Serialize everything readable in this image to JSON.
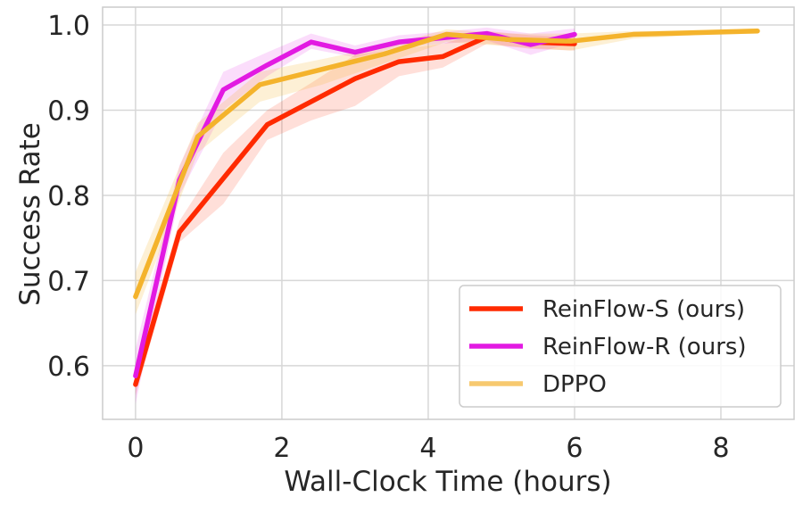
{
  "chart_data": {
    "type": "line",
    "title": "",
    "xlabel": "Wall-Clock Time (hours)",
    "ylabel": "Success Rate",
    "xlim": [
      -0.45,
      9.0
    ],
    "ylim": [
      0.537,
      1.021
    ],
    "xticks": [
      0,
      2,
      4,
      6,
      8
    ],
    "xtick_labels": [
      "0",
      "2",
      "4",
      "6",
      "8"
    ],
    "yticks": [
      0.6,
      0.7,
      0.8,
      0.9,
      1.0
    ],
    "ytick_labels": [
      "0.6",
      "0.7",
      "0.8",
      "0.9",
      "1.0"
    ],
    "grid": true,
    "legend_position": "bottom-right",
    "series": [
      {
        "name": "ReinFlow-S (ours)",
        "color": "#ff2a00",
        "alpha_band": 0.15,
        "x": [
          0,
          0.6,
          1.2,
          1.8,
          2.4,
          3.0,
          3.6,
          4.2,
          4.8,
          5.4,
          6.0
        ],
        "y": [
          0.578,
          0.757,
          0.82,
          0.883,
          0.91,
          0.937,
          0.957,
          0.963,
          0.986,
          0.98,
          0.978
        ],
        "lower": [
          0.565,
          0.745,
          0.79,
          0.865,
          0.888,
          0.905,
          0.94,
          0.95,
          0.978,
          0.972,
          0.97
        ],
        "upper": [
          0.592,
          0.77,
          0.85,
          0.9,
          0.932,
          0.965,
          0.972,
          0.978,
          0.993,
          0.988,
          0.986
        ]
      },
      {
        "name": "ReinFlow-R (ours)",
        "color": "#e21ae2",
        "alpha_band": 0.15,
        "x": [
          0,
          0.6,
          1.2,
          1.8,
          2.4,
          3.0,
          3.6,
          4.2,
          4.8,
          5.4,
          6.0
        ],
        "y": [
          0.588,
          0.818,
          0.924,
          0.953,
          0.98,
          0.968,
          0.98,
          0.985,
          0.99,
          0.977,
          0.989
        ],
        "lower": [
          0.555,
          0.8,
          0.9,
          0.94,
          0.972,
          0.962,
          0.974,
          0.978,
          0.982,
          0.965,
          0.98
        ],
        "upper": [
          0.62,
          0.835,
          0.945,
          0.968,
          0.99,
          0.976,
          0.988,
          0.992,
          0.997,
          0.99,
          0.996
        ]
      },
      {
        "name": "DPPO",
        "color": "#f4b32c",
        "legend_color": "#f7c96f",
        "alpha_band": 0.2,
        "x": [
          0,
          0.85,
          1.7,
          2.55,
          3.4,
          4.25,
          5.1,
          5.95,
          6.8,
          7.65,
          8.5
        ],
        "y": [
          0.681,
          0.869,
          0.93,
          0.948,
          0.966,
          0.989,
          0.983,
          0.981,
          0.989,
          0.991,
          0.993
        ],
        "lower": [
          0.66,
          0.85,
          0.91,
          0.93,
          0.955,
          0.98,
          0.975,
          0.97,
          0.984,
          0.988,
          0.99
        ],
        "upper": [
          0.71,
          0.885,
          0.945,
          0.96,
          0.975,
          0.995,
          0.99,
          0.99,
          0.993,
          0.994,
          0.996
        ]
      }
    ]
  }
}
